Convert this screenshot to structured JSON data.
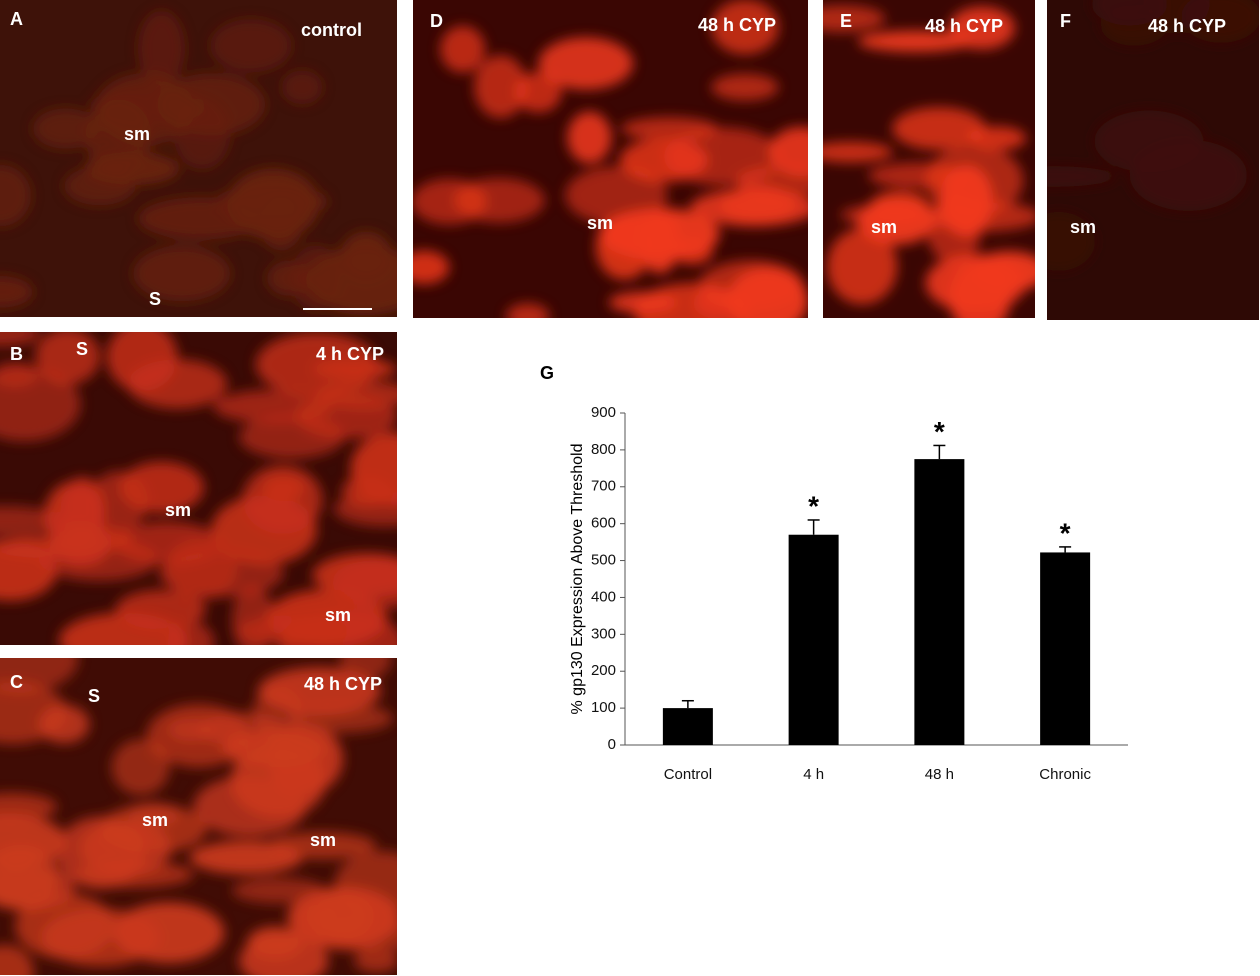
{
  "panels": [
    {
      "label": "A",
      "caption": "control",
      "marks": [
        "sm",
        "S"
      ]
    },
    {
      "label": "B",
      "caption": "4 h CYP",
      "marks": [
        "S",
        "sm",
        "sm"
      ]
    },
    {
      "label": "C",
      "caption": "48 h CYP",
      "marks": [
        "S",
        "sm",
        "sm"
      ]
    },
    {
      "label": "D",
      "caption": "48 h CYP",
      "marks": [
        "sm"
      ]
    },
    {
      "label": "E",
      "caption": "48 h CYP",
      "marks": [
        "sm"
      ]
    },
    {
      "label": "F",
      "caption": "48 h CYP",
      "marks": [
        "sm"
      ]
    }
  ],
  "chart_data": {
    "type": "bar",
    "panel_label": "G",
    "ylabel": "% gp130 Expression Above Threshold",
    "categories": [
      "Control",
      "4 h",
      "48 h",
      "Chronic"
    ],
    "values": [
      100,
      570,
      775,
      522
    ],
    "errors": [
      20,
      40,
      37,
      15
    ],
    "annotations": [
      null,
      "*",
      "*",
      "*"
    ],
    "color": "#000000",
    "ylim": [
      0,
      900
    ],
    "yticks": [
      0,
      100,
      200,
      300,
      400,
      500,
      600,
      700,
      800,
      900
    ]
  }
}
